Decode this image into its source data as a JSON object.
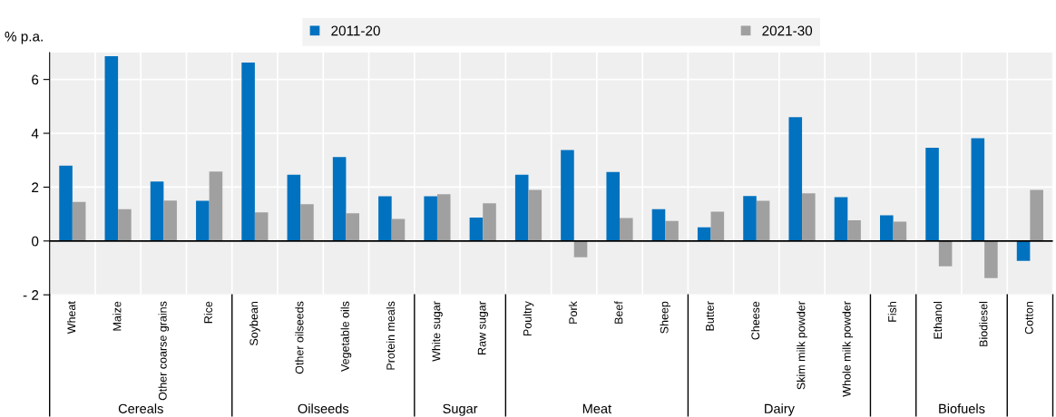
{
  "chart_data": {
    "type": "bar",
    "ylabel": "% p.a.",
    "categories": [
      "Wheat",
      "Maize",
      "Other coarse grains",
      "Rice",
      "Soybean",
      "Other oilseeds",
      "Vegetable oils",
      "Protein meals",
      "White sugar",
      "Raw sugar",
      "Poultry",
      "Pork",
      "Beef",
      "Sheep",
      "Butter",
      "Cheese",
      "Skim milk powder",
      "Whole milk powder",
      "Fish",
      "Ethanol",
      "Biodiesel",
      "Cotton"
    ],
    "series": [
      {
        "name": "2011-20",
        "color": "#0072bf",
        "values": [
          2.8,
          6.86,
          2.21,
          1.49,
          6.63,
          2.46,
          3.12,
          1.66,
          1.66,
          0.87,
          2.46,
          3.38,
          2.56,
          1.18,
          0.51,
          1.67,
          4.6,
          1.63,
          0.95,
          3.46,
          3.82,
          -0.74
        ]
      },
      {
        "name": "2021-30",
        "color": "#a0a0a0",
        "values": [
          1.45,
          1.18,
          1.5,
          2.58,
          1.06,
          1.37,
          1.03,
          0.82,
          1.74,
          1.4,
          1.9,
          -0.6,
          0.85,
          0.74,
          1.09,
          1.49,
          1.77,
          0.77,
          0.72,
          -0.94,
          -1.38,
          1.9
        ]
      }
    ],
    "ylim": [
      -2,
      7
    ],
    "yticks": [
      {
        "value": -2,
        "label": "- 2"
      },
      0,
      2,
      4,
      6
    ],
    "annotations": [
      "Cereals",
      "Oilseeds",
      "Sugar",
      "Meat",
      "Dairy",
      "Biofuels"
    ],
    "grid": true,
    "legend": "top"
  }
}
